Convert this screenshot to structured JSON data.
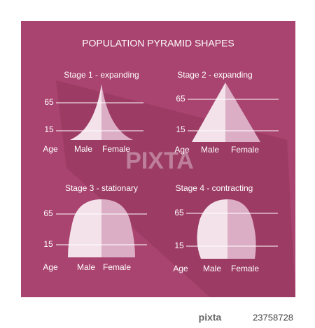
{
  "header": {
    "title": "POPULATION PYRAMID SHAPES"
  },
  "panels": [
    {
      "title": "Stage 1 - expanding",
      "ages": [
        "65",
        "15"
      ],
      "axis_label": "Age",
      "left_label": "Male",
      "right_label": "Female"
    },
    {
      "title": "Stage 2 - expanding",
      "ages": [
        "65",
        "15"
      ],
      "axis_label": "Age",
      "left_label": "Male",
      "right_label": "Female"
    },
    {
      "title": "Stage 3 - stationary",
      "ages": [
        "65",
        "15"
      ],
      "axis_label": "Age",
      "left_label": "Male",
      "right_label": "Female"
    },
    {
      "title": "Stage 4 - contracting",
      "ages": [
        "65",
        "15"
      ],
      "axis_label": "Age",
      "left_label": "Male",
      "right_label": "Female"
    }
  ],
  "watermark": "PIXTA",
  "footer": {
    "brand": "pixta",
    "id": "23758728"
  }
}
